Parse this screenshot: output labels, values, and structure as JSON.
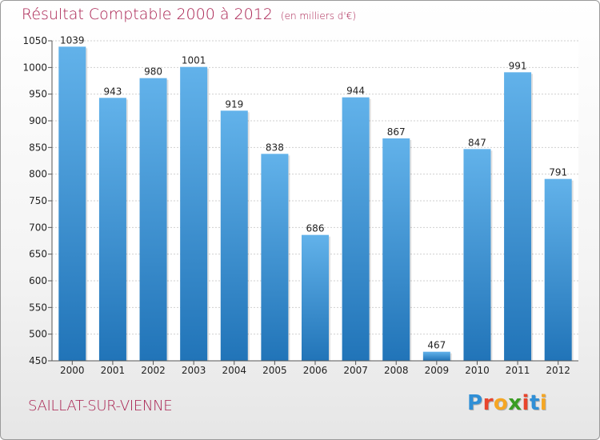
{
  "title": "Résultat Comptable 2000 à 2012",
  "subtitle": "(en milliers d'€)",
  "commune": "SAILLAT-SUR-VIENNE",
  "logo": {
    "letters": [
      "P",
      "r",
      "o",
      "x",
      "i",
      "t",
      "i"
    ],
    "colors": [
      "#2f8fd6",
      "#e8452c",
      "#f5a623",
      "#3a9d23",
      "#e8452c",
      "#2f8fd6",
      "#f5a623"
    ]
  },
  "colors": {
    "bar_top": "#62b2ea",
    "bar_bottom": "#2174b8",
    "title": "#a81e4e"
  },
  "chart_data": {
    "type": "bar",
    "title": "Résultat Comptable 2000 à 2012",
    "ylabel": "en milliers d'€",
    "categories": [
      "2000",
      "2001",
      "2002",
      "2003",
      "2004",
      "2005",
      "2006",
      "2007",
      "2008",
      "2009",
      "2010",
      "2011",
      "2012"
    ],
    "values": [
      1039,
      943,
      980,
      1001,
      919,
      838,
      686,
      944,
      867,
      467,
      847,
      991,
      791
    ],
    "ylim": [
      450,
      1050
    ],
    "yticks": [
      450,
      500,
      550,
      600,
      650,
      700,
      750,
      800,
      850,
      900,
      950,
      1000,
      1050
    ],
    "grid": true
  }
}
